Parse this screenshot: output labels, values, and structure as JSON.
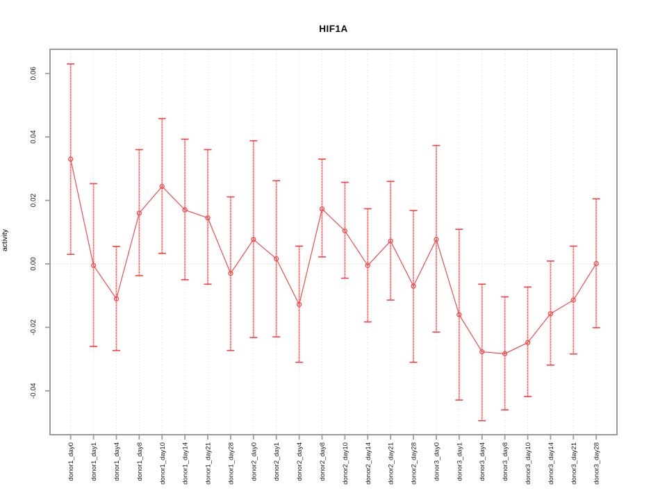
{
  "chart_data": {
    "type": "line",
    "title": "HIF1A",
    "xlabel": "",
    "ylabel": "activity",
    "legend": "none",
    "grid": {
      "vertical_dotted_per_category": true,
      "horizontal_zero_line_dotted": true
    },
    "ylim": [
      -0.054,
      0.068
    ],
    "yticks": [
      0.06,
      0.04,
      0.02,
      0.0,
      -0.02,
      -0.04
    ],
    "categories": [
      "donor1_day0",
      "donor1_day1",
      "donor1_day4",
      "donor1_day8",
      "donor1_day10",
      "donor1_day14",
      "donor1_day21",
      "donor1_day28",
      "donor2_day0",
      "donor2_day1",
      "donor2_day4",
      "donor2_day8",
      "donor2_day10",
      "donor2_day14",
      "donor2_day21",
      "donor2_day28",
      "donor3_day0",
      "donor3_day1",
      "donor3_day4",
      "donor3_day8",
      "donor3_day10",
      "donor3_day14",
      "donor3_day21",
      "donor3_day28"
    ],
    "series": [
      {
        "name": "activity",
        "values": [
          0.033,
          -0.0005,
          -0.011,
          0.016,
          0.0244,
          0.017,
          0.0145,
          -0.003,
          0.0077,
          0.0016,
          -0.0128,
          0.0173,
          0.0104,
          -0.0005,
          0.0072,
          -0.007,
          0.0077,
          -0.016,
          -0.0277,
          -0.0283,
          -0.0248,
          -0.0157,
          -0.0114,
          0.0001
        ],
        "err_high": [
          0.063,
          0.0253,
          0.0055,
          0.036,
          0.0458,
          0.0393,
          0.036,
          0.0211,
          0.0388,
          0.0262,
          0.0056,
          0.033,
          0.0257,
          0.0174,
          0.026,
          0.0168,
          0.0373,
          0.0109,
          -0.0064,
          -0.0104,
          -0.0073,
          0.0009,
          0.0056,
          0.0205
        ],
        "err_low": [
          0.003,
          -0.026,
          -0.0273,
          -0.0037,
          0.0033,
          -0.005,
          -0.0064,
          -0.0273,
          -0.0232,
          -0.023,
          -0.031,
          0.0022,
          -0.0045,
          -0.0183,
          -0.0114,
          -0.031,
          -0.0215,
          -0.0429,
          -0.0494,
          -0.046,
          -0.0418,
          -0.0319,
          -0.0284,
          -0.0201
        ]
      }
    ],
    "colors": {
      "point_and_line": "#f24a4a",
      "error_bar_fill": "#ffa3a3",
      "error_bar_dots": "#ff4040",
      "error_cap": "#ff3d3d",
      "grid": "#d9d9d9",
      "zero_line": "#cccccc",
      "box": "#9a9a9a",
      "tick": "#9a9a9a",
      "text": "#1a1a1a"
    }
  }
}
